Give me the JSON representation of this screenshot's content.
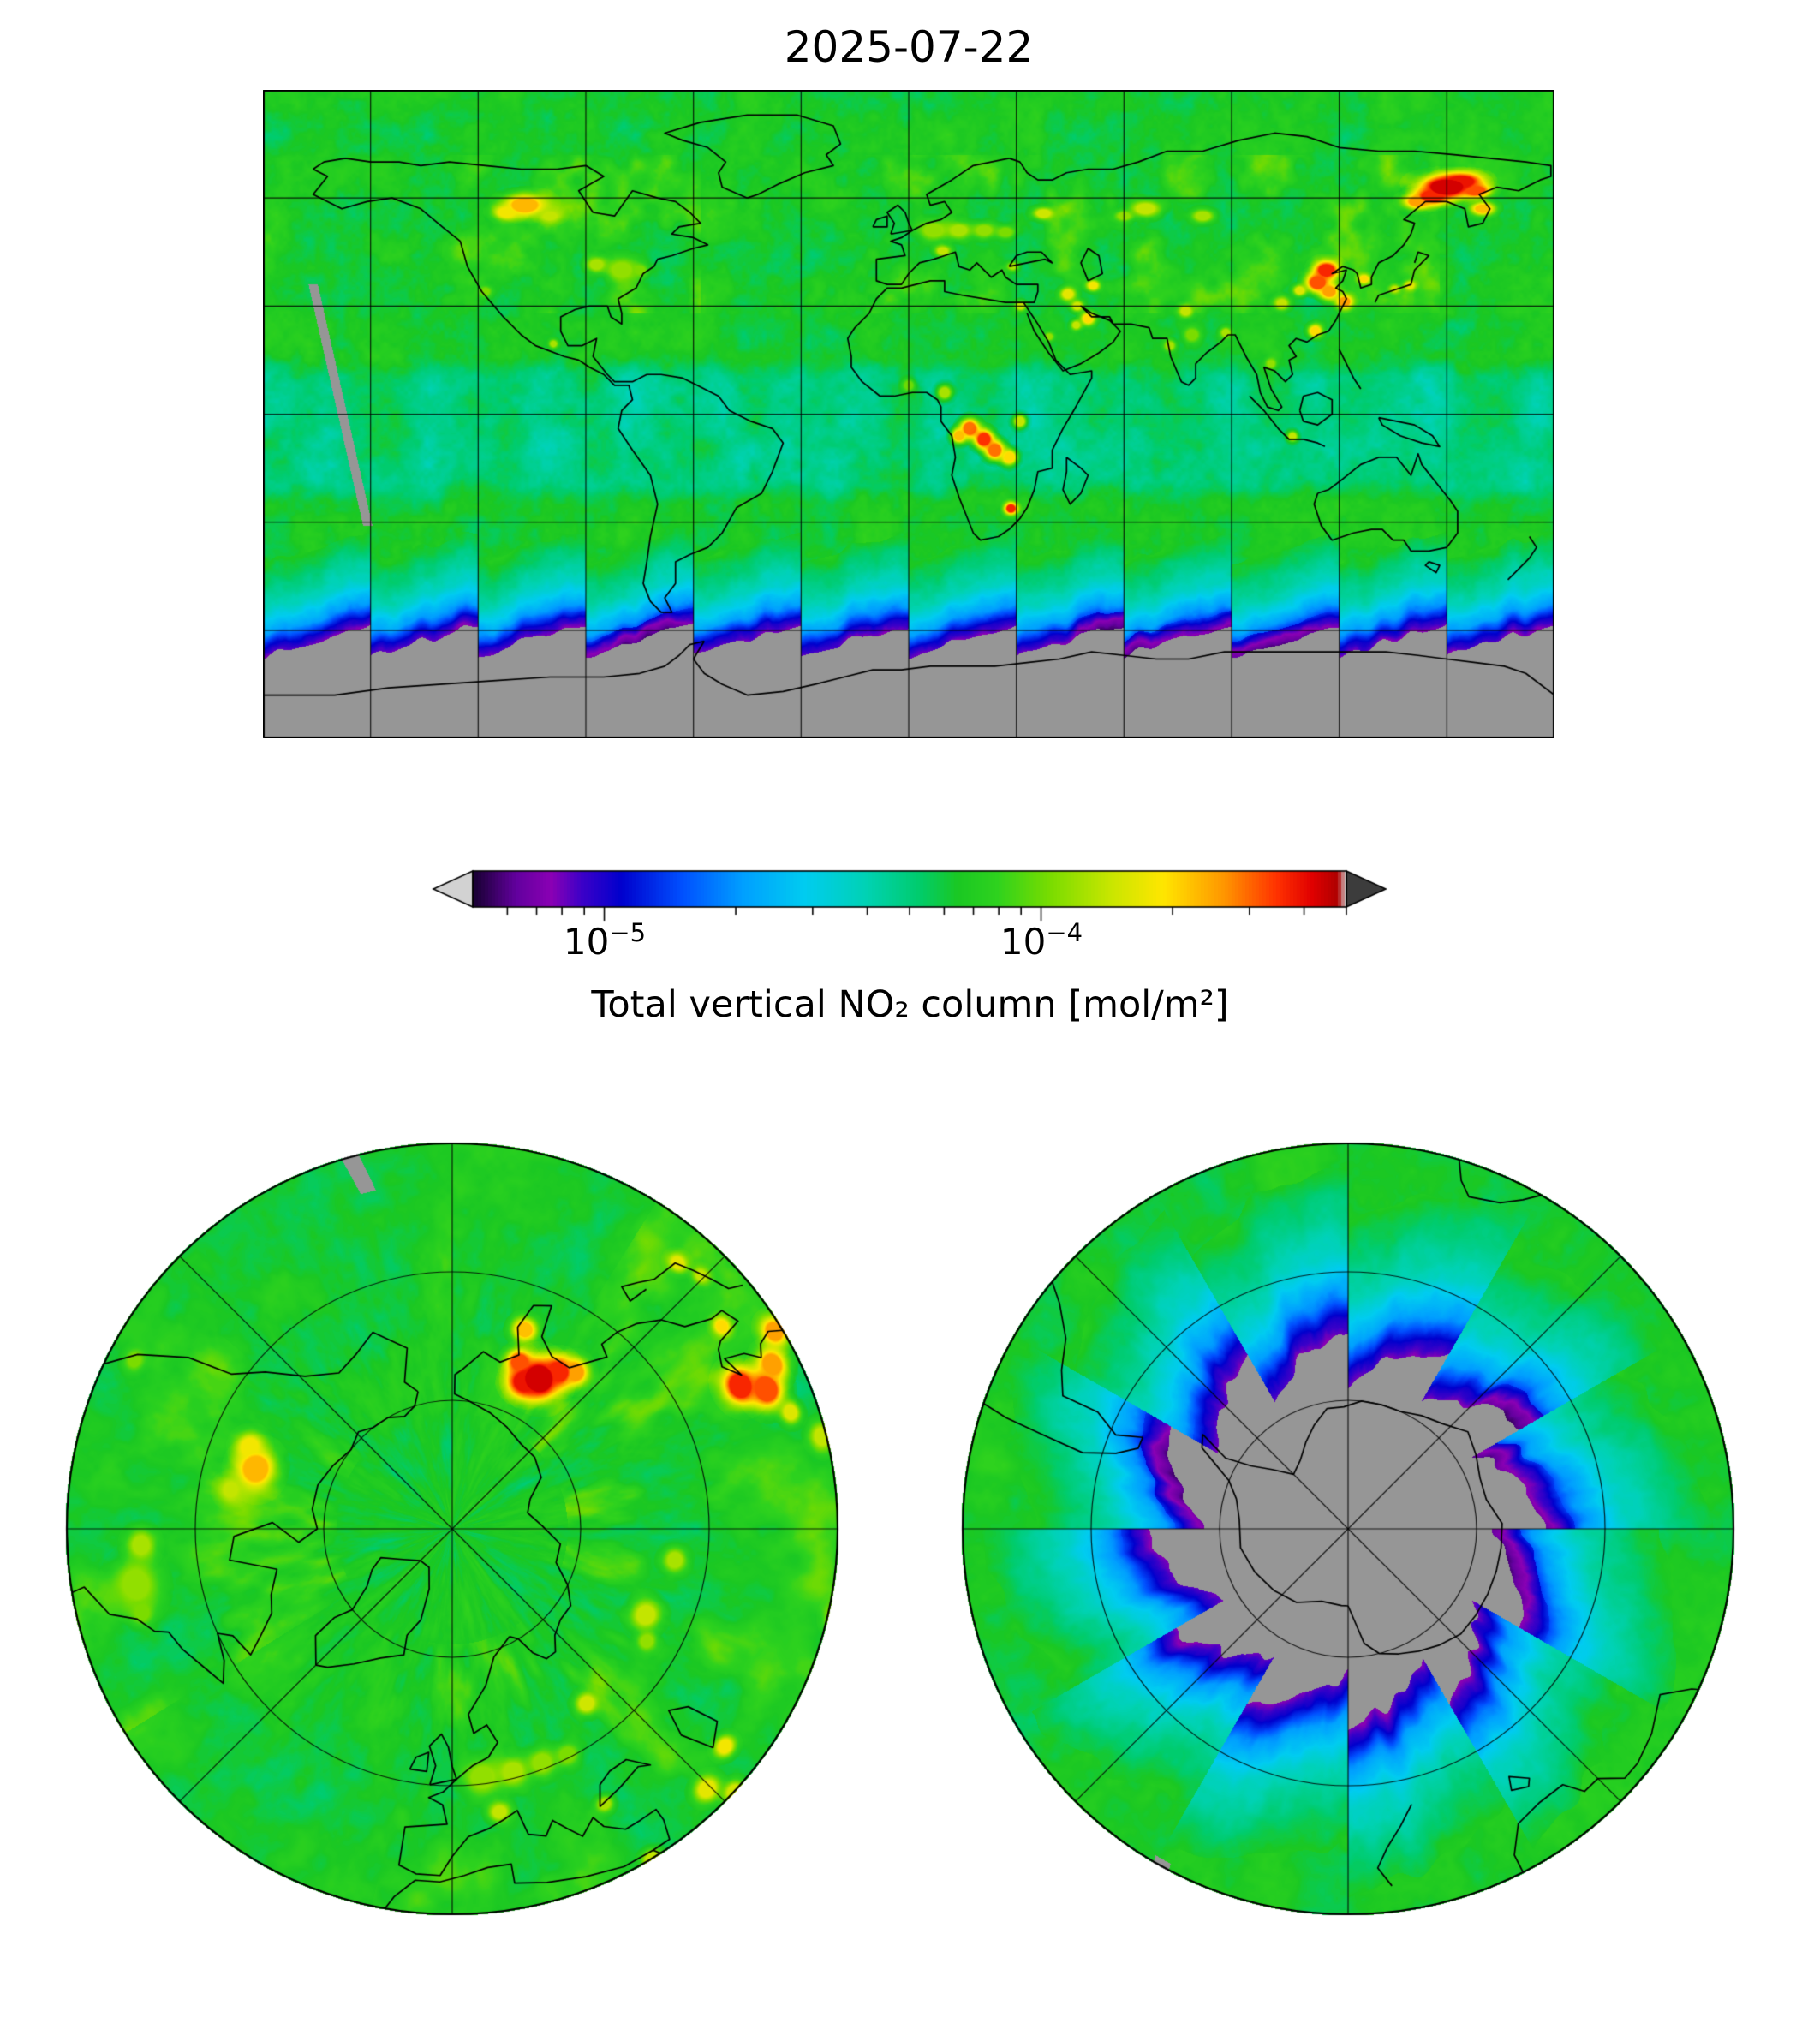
{
  "chart_data": {
    "type": "heatmap",
    "title": "2025-07-22",
    "variable": "Total vertical NO2 column",
    "scale": "log",
    "vmin": 5e-06,
    "vmax": 0.0005,
    "units": "mol/m²",
    "background_value": 6e-05,
    "tropical_band": {
      "lat_range": [
        -18,
        9
      ],
      "value": 4e-05
    },
    "no_data_color": "#969696",
    "land_outline_color": "#000000",
    "colorbar": {
      "label": "Total vertical NO₂ column [mol/m²]",
      "orientation": "horizontal",
      "extend": "both",
      "under_arrow_color": "#d2d2d2",
      "over_arrow_color": "#3c3c3c",
      "ticks": [
        {
          "base": "10",
          "exp": "−5",
          "value": 1e-05
        },
        {
          "base": "10",
          "exp": "−4",
          "value": 0.0001
        }
      ],
      "minor_ticks": [
        6e-06,
        7e-06,
        8e-06,
        9e-06,
        2e-05,
        3e-05,
        4e-05,
        5e-05,
        6e-05,
        7e-05,
        8e-05,
        9e-05,
        0.0002,
        0.0003,
        0.0004,
        0.0005
      ],
      "stops": [
        [
          0.0,
          "#16002f"
        ],
        [
          0.05,
          "#62009e"
        ],
        [
          0.09,
          "#8a00b4"
        ],
        [
          0.125,
          "#3c00c8"
        ],
        [
          0.17,
          "#0000cd"
        ],
        [
          0.24,
          "#0050ff"
        ],
        [
          0.31,
          "#00a0ff"
        ],
        [
          0.38,
          "#00ccf0"
        ],
        [
          0.45,
          "#00d2b4"
        ],
        [
          0.51,
          "#00cc6e"
        ],
        [
          0.555,
          "#1ac823"
        ],
        [
          0.6,
          "#2ed21e"
        ],
        [
          0.66,
          "#78dc00"
        ],
        [
          0.73,
          "#c8e600"
        ],
        [
          0.79,
          "#ffe600"
        ],
        [
          0.86,
          "#ff9600"
        ],
        [
          0.92,
          "#ff3200"
        ],
        [
          0.96,
          "#e10000"
        ],
        [
          0.99,
          "#af0000"
        ],
        [
          1.0,
          "#d2d2d2"
        ]
      ]
    },
    "panels": [
      {
        "id": "global",
        "projection": "equirectangular",
        "lon_range": [
          -180,
          180
        ],
        "lat_range": [
          -90,
          90
        ],
        "gridline_spacing_deg": 30
      },
      {
        "id": "north-polar",
        "projection": "polar-stereographic-north",
        "edge_lat": 30,
        "parallels": [
          50,
          70
        ],
        "meridian_spacing_deg": 45
      },
      {
        "id": "south-polar",
        "projection": "polar-stereographic-south",
        "edge_lat": -30,
        "parallels": [
          -50,
          -70
        ],
        "meridian_spacing_deg": 45
      }
    ],
    "polar_night": {
      "edge_lat_min": -67,
      "edge_lat_max": -58.5,
      "teeth_per_360deg": 12,
      "purple_lons": [
        -75,
        60,
        100
      ]
    },
    "missing_swath": {
      "lat_start": 36,
      "lon_start": -166,
      "lat_end": -30,
      "lon_end": -151,
      "half_width_deg": 1.3
    },
    "hotspots": [
      [
        150,
        63,
        2.2,
        0.00043
      ],
      [
        146,
        60.5,
        1.6,
        0.00036
      ],
      [
        154,
        64.5,
        1.6,
        0.00039
      ],
      [
        142,
        59,
        1.4,
        0.00025
      ],
      [
        158,
        62,
        1.3,
        0.00032
      ],
      [
        160,
        57,
        1.2,
        0.00022
      ],
      [
        -107,
        58,
        2.0,
        0.00023
      ],
      [
        -112,
        56,
        1.4,
        0.00018
      ],
      [
        -100,
        55,
        1.2,
        0.00014
      ],
      [
        -80,
        40,
        2.2,
        0.000115
      ],
      [
        -87,
        41.5,
        1.4,
        0.000126
      ],
      [
        -75,
        40,
        1.2,
        0.000105
      ],
      [
        -118,
        34,
        1.0,
        0.000105
      ],
      [
        -99,
        19.5,
        0.8,
        0.000126
      ],
      [
        7,
        51,
        1.8,
        0.000115
      ],
      [
        14,
        51,
        1.5,
        0.000126
      ],
      [
        21,
        51,
        1.4,
        0.000115
      ],
      [
        27,
        50.5,
        1.2,
        0.000105
      ],
      [
        37.6,
        55.7,
        1.1,
        0.00015
      ],
      [
        9.5,
        45.3,
        1.0,
        0.00014
      ],
      [
        29,
        41,
        0.8,
        0.000126
      ],
      [
        44.4,
        33.3,
        1.2,
        0.000165
      ],
      [
        51.4,
        35.7,
        1.0,
        0.00018
      ],
      [
        47,
        30,
        1.0,
        0.00015
      ],
      [
        50,
        26.5,
        1.2,
        0.0002
      ],
      [
        46.7,
        24.7,
        0.9,
        0.00014
      ],
      [
        39.2,
        21.5,
        0.8,
        0.000115
      ],
      [
        31.2,
        30,
        0.9,
        0.00014
      ],
      [
        77.2,
        28.6,
        1.2,
        0.00014
      ],
      [
        72.8,
        19,
        1.0,
        0.000126
      ],
      [
        79,
        22,
        1.5,
        0.000105
      ],
      [
        88.4,
        22.6,
        1.0,
        0.000126
      ],
      [
        116.4,
        39.9,
        1.8,
        0.00036
      ],
      [
        114,
        36.5,
        1.8,
        0.00032
      ],
      [
        117.2,
        34,
        1.5,
        0.00025
      ],
      [
        121.5,
        31.2,
        1.3,
        0.00025
      ],
      [
        113.3,
        23.1,
        1.2,
        0.0002
      ],
      [
        104,
        30.7,
        1.2,
        0.00014
      ],
      [
        109,
        34.3,
        1.0,
        0.00016
      ],
      [
        126.9,
        37.5,
        0.9,
        0.0002
      ],
      [
        139.7,
        35.7,
        0.9,
        0.000165
      ],
      [
        135.5,
        34.7,
        0.8,
        0.00014
      ],
      [
        17,
        -4,
        1.8,
        0.00029
      ],
      [
        21,
        -7,
        1.8,
        0.00035
      ],
      [
        14,
        -6,
        1.4,
        0.00022
      ],
      [
        24,
        -10,
        1.8,
        0.00029
      ],
      [
        28,
        -12,
        1.5,
        0.0002
      ],
      [
        31,
        -2,
        1.3,
        0.00014
      ],
      [
        10,
        6,
        1.4,
        0.000126
      ],
      [
        0,
        8,
        1.2,
        0.0001
      ],
      [
        28.5,
        -26.2,
        1.1,
        0.00036
      ],
      [
        101,
        14,
        1.0,
        0.000115
      ],
      [
        107,
        -6.2,
        1.0,
        0.00014
      ],
      [
        66,
        57,
        1.5,
        0.00014
      ],
      [
        82,
        55,
        1.2,
        0.000126
      ],
      [
        60,
        55,
        1.0,
        0.000115
      ]
    ]
  }
}
